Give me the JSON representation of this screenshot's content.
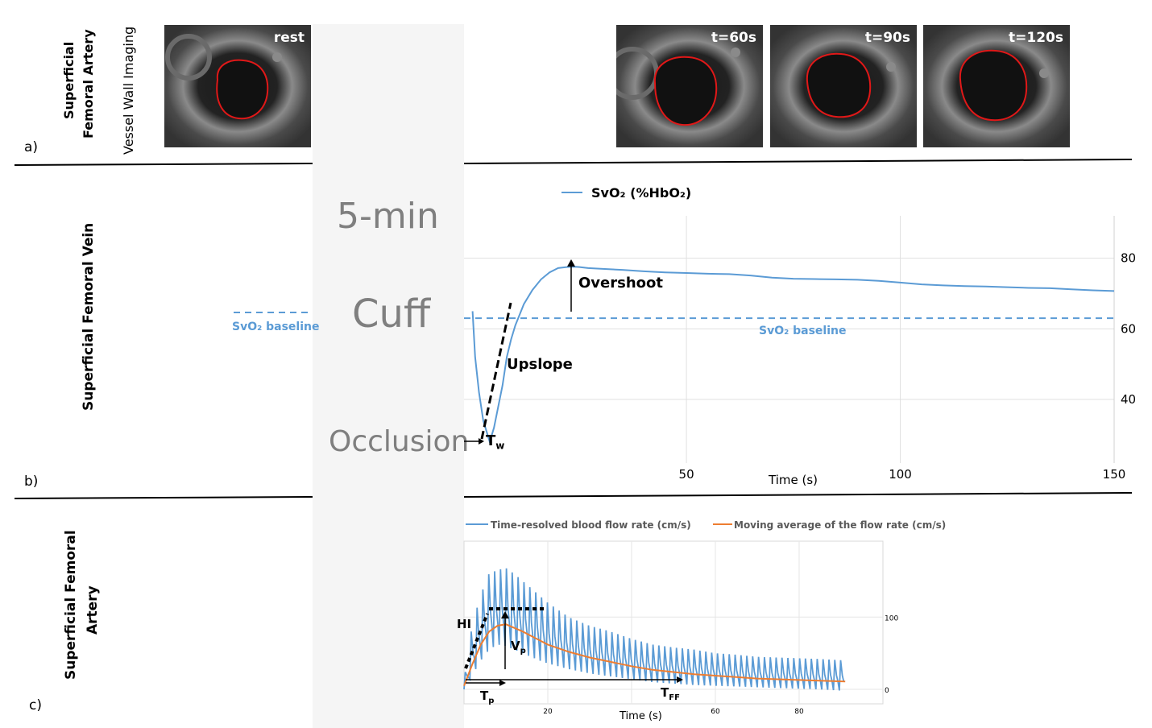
{
  "panel_a": {
    "letter": "a)",
    "row_label_1": "Superficial",
    "row_label_2": "Femoral Artery",
    "sub_label": "Vessel Wall Imaging",
    "frames": [
      "rest",
      "t=60s",
      "t=90s",
      "t=120s"
    ]
  },
  "cuff": {
    "line1": "5-min",
    "line2": "Cuff",
    "line3": "Occlusion"
  },
  "panel_b": {
    "letter": "b)",
    "row_label": "Superficial Femoral Vein",
    "baseline_left": "SvO₂ baseline",
    "baseline_right": "SvO₂ baseline",
    "overshoot": "Overshoot",
    "upslope": "Upslope",
    "tw": "T",
    "tw_sub": "w"
  },
  "panel_c": {
    "letter": "c)",
    "row_label_1": "Superficial Femoral",
    "row_label_2": "Artery",
    "hi": "HI",
    "vp": "V",
    "vp_sub": "p",
    "tp": "T",
    "tp_sub": "p",
    "tff": "T",
    "tff_sub": "FF"
  },
  "chart_data": [
    {
      "type": "line",
      "legend": [
        "SvO₂ (%HbO₂)"
      ],
      "xlabel": "Time (s)",
      "ylabel": "",
      "xlim": [
        -2,
        150
      ],
      "ylim": [
        22,
        92
      ],
      "x_ticks": [
        50,
        100,
        150
      ],
      "y_ticks": [
        40,
        60,
        80
      ],
      "grid": true,
      "legend_position": "top",
      "colors": {
        "series": "#5b9bd5",
        "text": "#000000"
      },
      "baseline": 63,
      "series": [
        {
          "name": "SvO₂ (%HbO₂)",
          "x": [
            0,
            0.6,
            1.5,
            2.5,
            4,
            5,
            6,
            7,
            8,
            9,
            10,
            12,
            14,
            16,
            18,
            20,
            22,
            24,
            25,
            27,
            30,
            35,
            40,
            45,
            50,
            55,
            60,
            65,
            70,
            75,
            80,
            85,
            90,
            95,
            100,
            105,
            110,
            115,
            120,
            125,
            130,
            135,
            140,
            145,
            150
          ],
          "y": [
            65,
            52,
            42,
            34,
            28,
            32,
            38,
            44,
            52,
            57,
            61,
            67,
            71,
            74,
            76,
            77.2,
            77.5,
            77.6,
            77.5,
            77.2,
            77,
            76.7,
            76.3,
            76,
            75.8,
            75.6,
            75.5,
            75.1,
            74.5,
            74.2,
            74.1,
            74,
            73.9,
            73.6,
            73.1,
            72.6,
            72.3,
            72.1,
            72,
            71.8,
            71.6,
            71.5,
            71.2,
            70.9,
            70.7
          ]
        }
      ]
    },
    {
      "type": "line",
      "legend": [
        "Time-resolved blood flow rate (cm/s)",
        "Moving average of the flow rate (cm/s)"
      ],
      "xlabel": "Time (s)",
      "ylabel": "",
      "xlim": [
        0,
        100
      ],
      "ylim": [
        -20,
        205
      ],
      "x_ticks": [
        20,
        60,
        80
      ],
      "y_ticks": [
        0,
        100
      ],
      "grid": true,
      "legend_position": "top",
      "colors": {
        "raw": "#5b9bd5",
        "average": "#ed7d31"
      },
      "series": [
        {
          "name": "Moving average of the flow rate (cm/s)",
          "x": [
            0,
            2,
            4,
            6,
            8,
            10,
            12,
            14,
            16,
            18,
            20,
            25,
            30,
            35,
            40,
            45,
            50,
            55,
            60,
            65,
            70,
            75,
            80,
            85,
            91
          ],
          "y": [
            5,
            35,
            62,
            80,
            88,
            90,
            85,
            80,
            74,
            68,
            62,
            52,
            44,
            38,
            32,
            27,
            24,
            21,
            19,
            17,
            15,
            14,
            13,
            12,
            11
          ]
        },
        {
          "name": "Time-resolved blood flow rate (cm/s)",
          "beat_period_s": 1.4,
          "envelope": {
            "x": [
              0,
              2,
              4,
              6,
              8,
              10,
              12,
              14,
              16,
              18,
              20,
              25,
              30,
              35,
              40,
              45,
              50,
              55,
              60,
              65,
              70,
              75,
              80,
              85,
              91
            ],
            "peak": [
              10,
              90,
              130,
              160,
              165,
              168,
              160,
              150,
              140,
              130,
              120,
              100,
              88,
              80,
              70,
              62,
              58,
              55,
              50,
              48,
              45,
              44,
              43,
              42,
              40
            ],
            "trough": [
              0,
              20,
              40,
              55,
              62,
              60,
              55,
              50,
              45,
              40,
              36,
              28,
              22,
              18,
              14,
              10,
              8,
              6,
              5,
              4,
              3,
              2,
              1,
              0,
              -2
            ]
          }
        }
      ]
    }
  ]
}
